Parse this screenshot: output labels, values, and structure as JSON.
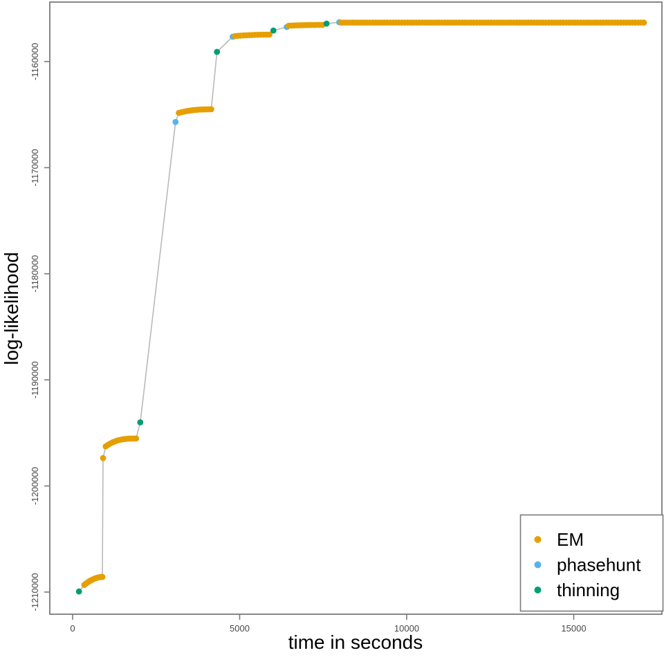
{
  "chart_data": {
    "type": "scatter",
    "title": "",
    "xlabel": "time in seconds",
    "ylabel": "log-likelihood",
    "x_ticks": [
      0,
      5000,
      10000,
      15000
    ],
    "y_ticks": [
      -1160000,
      -1170000,
      -1180000,
      -1190000,
      -1200000,
      -1210000
    ],
    "xlim": [
      -700,
      17600
    ],
    "ylim": [
      -1212100,
      -1154400
    ],
    "grid": "off",
    "legend_position": "bottom-right",
    "line_color": "#b9b9b9",
    "legend": [
      {
        "name": "EM",
        "color": "#E69F00"
      },
      {
        "name": "phasehunt",
        "color": "#56B4E9"
      },
      {
        "name": "thinning",
        "color": "#009E73"
      }
    ],
    "segments": [
      {
        "method": "thinning",
        "type": "point",
        "t": 190,
        "v": -1209950
      },
      {
        "method": "EM",
        "type": "run",
        "t0": 350,
        "t1": 890,
        "n": 14,
        "v0": -1209320,
        "v1": -1208570,
        "p": 1.8
      },
      {
        "method": "EM",
        "type": "point",
        "t": 910,
        "v": -1197370
      },
      {
        "method": "EM",
        "type": "run",
        "t0": 990,
        "t1": 1900,
        "n": 14,
        "v0": -1196270,
        "v1": -1195530,
        "p": 2.8
      },
      {
        "method": "thinning",
        "type": "point",
        "t": 2025,
        "v": -1194000
      },
      {
        "method": "phasehunt",
        "type": "point",
        "t": 3080,
        "v": -1165700
      },
      {
        "method": "EM",
        "type": "run",
        "t0": 3180,
        "t1": 4150,
        "n": 15,
        "v0": -1164840,
        "v1": -1164500,
        "p": 2.5
      },
      {
        "method": "thinning",
        "type": "point",
        "t": 4320,
        "v": -1159090
      },
      {
        "method": "phasehunt",
        "type": "point",
        "t": 4790,
        "v": -1157660
      },
      {
        "method": "EM",
        "type": "run",
        "t0": 4860,
        "t1": 5890,
        "n": 13,
        "v0": -1157600,
        "v1": -1157460,
        "p": 2
      },
      {
        "method": "thinning",
        "type": "point",
        "t": 6010,
        "v": -1157070
      },
      {
        "method": "phasehunt",
        "type": "point",
        "t": 6410,
        "v": -1156740
      },
      {
        "method": "EM",
        "type": "run",
        "t0": 6470,
        "t1": 7480,
        "n": 13,
        "v0": -1156620,
        "v1": -1156545,
        "p": 2
      },
      {
        "method": "thinning",
        "type": "point",
        "t": 7600,
        "v": -1156420
      },
      {
        "method": "phasehunt",
        "type": "point",
        "t": 7980,
        "v": -1156300
      },
      {
        "method": "EM",
        "type": "run",
        "t0": 8040,
        "t1": 17100,
        "n": 106,
        "v0": -1156330,
        "v1": -1156330,
        "p": 1
      }
    ]
  }
}
